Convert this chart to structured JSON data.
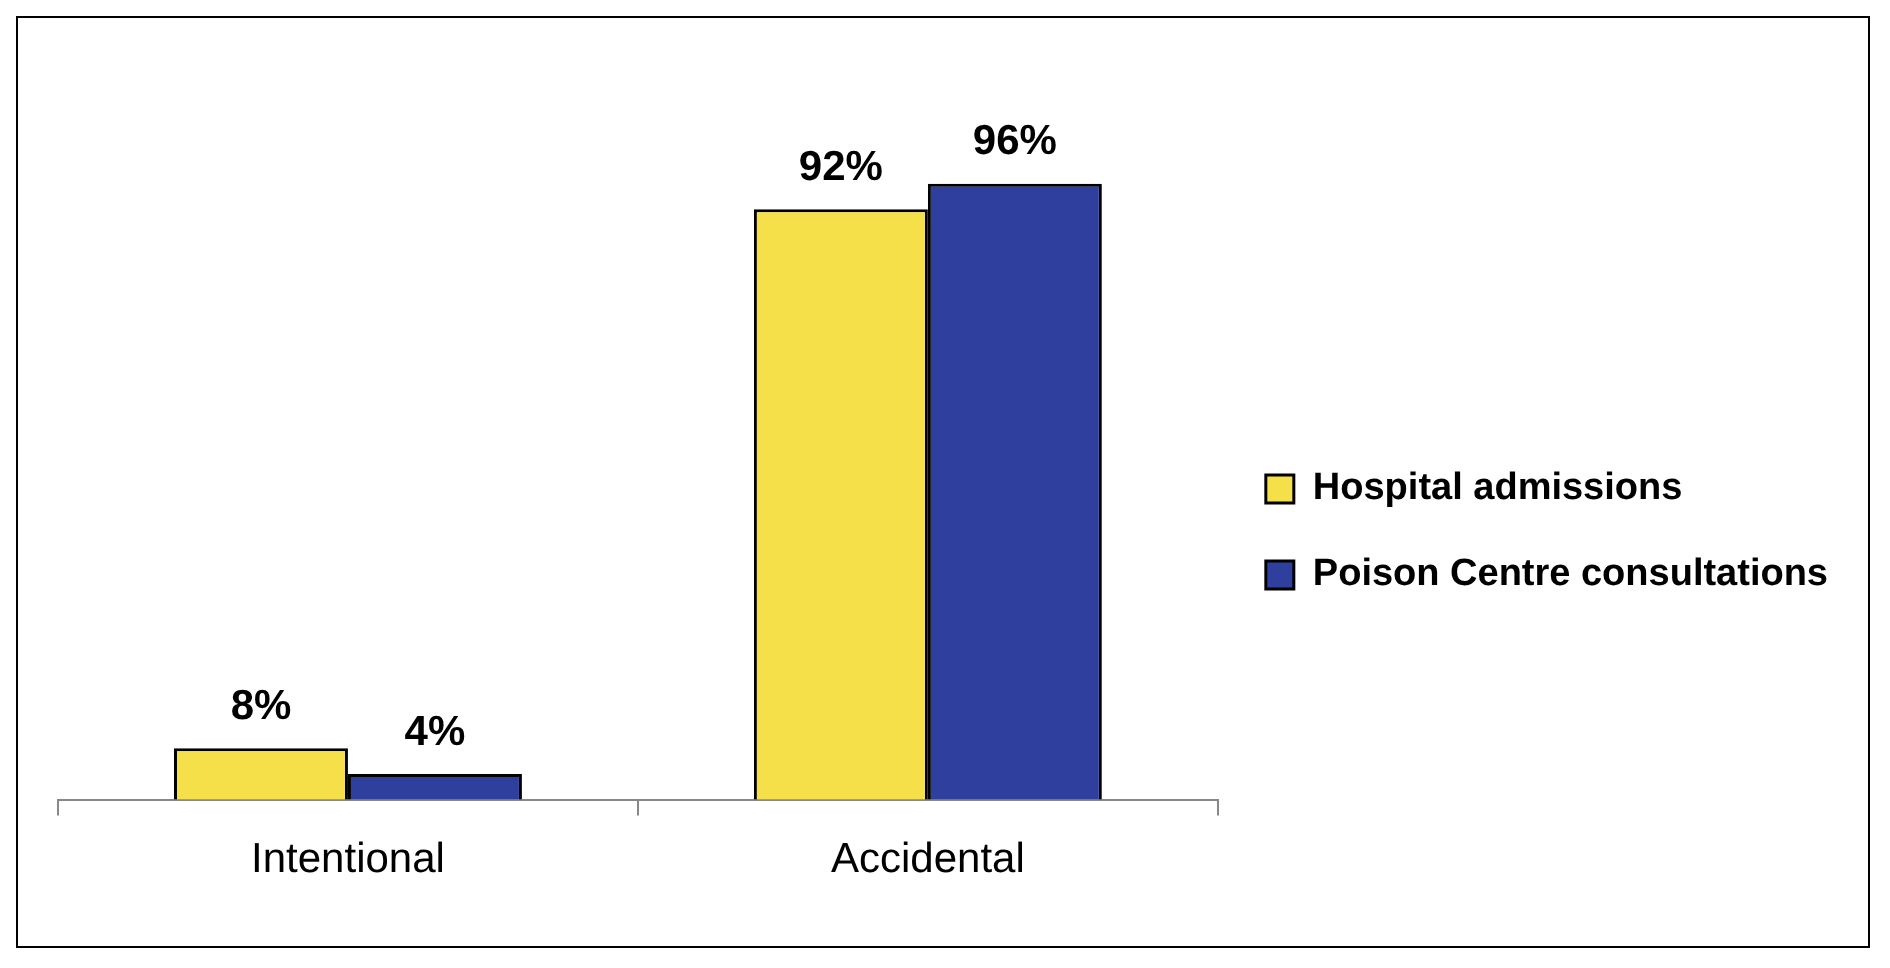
{
  "chart_data": {
    "type": "bar",
    "categories": [
      "Intentional",
      "Accidental"
    ],
    "series": [
      {
        "name": "Hospital admissions",
        "color": "#f5e04a",
        "values": [
          8,
          92
        ],
        "value_labels": [
          "8%",
          "92%"
        ]
      },
      {
        "name": "Poison Centre consultations",
        "color": "#2e3f9e",
        "values": [
          4,
          96
        ],
        "value_labels": [
          "4%",
          "96%"
        ]
      }
    ],
    "legend": "right",
    "grid": false
  }
}
